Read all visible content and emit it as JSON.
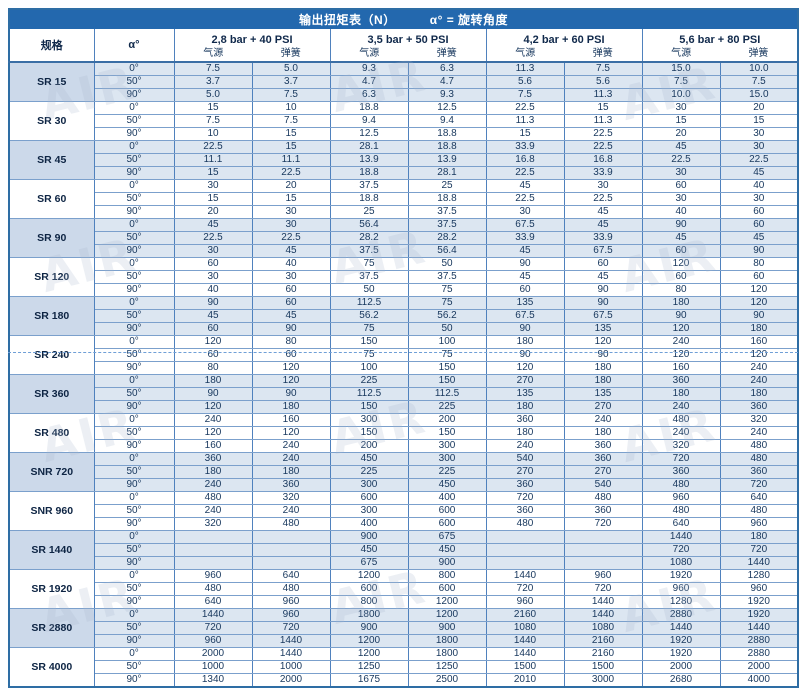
{
  "title": {
    "main": "输出扭矩表（N）",
    "formula": "α° = 旋转角度"
  },
  "table": {
    "spec_header": "规格",
    "angle_header": "α°",
    "pressure_groups": [
      {
        "label": "2,8 bar + 40 PSI",
        "air_label": "气源",
        "spring_label": "弹簧"
      },
      {
        "label": "3,5 bar + 50 PSI",
        "air_label": "气源",
        "spring_label": "弹簧"
      },
      {
        "label": "4,2 bar + 60 PSI",
        "air_label": "气源",
        "spring_label": "弹簧"
      },
      {
        "label": "5,6 bar + 80 PSI",
        "air_label": "气源",
        "spring_label": "弹簧"
      }
    ],
    "angles": [
      "0°",
      "50°",
      "90°"
    ],
    "rows": [
      {
        "spec": "SR 15",
        "values": [
          [
            "7.5",
            "5.0",
            "9.3",
            "6.3",
            "11.3",
            "7.5",
            "15.0",
            "10.0"
          ],
          [
            "3.7",
            "3.7",
            "4.7",
            "4.7",
            "5.6",
            "5.6",
            "7.5",
            "7.5"
          ],
          [
            "5.0",
            "7.5",
            "6.3",
            "9.3",
            "7.5",
            "11.3",
            "10.0",
            "15.0"
          ]
        ]
      },
      {
        "spec": "SR 30",
        "values": [
          [
            "15",
            "10",
            "18.8",
            "12.5",
            "22.5",
            "15",
            "30",
            "20"
          ],
          [
            "7.5",
            "7.5",
            "9.4",
            "9.4",
            "11.3",
            "11.3",
            "15",
            "15"
          ],
          [
            "10",
            "15",
            "12.5",
            "18.8",
            "15",
            "22.5",
            "20",
            "30"
          ]
        ]
      },
      {
        "spec": "SR 45",
        "values": [
          [
            "22.5",
            "15",
            "28.1",
            "18.8",
            "33.9",
            "22.5",
            "45",
            "30"
          ],
          [
            "11.1",
            "11.1",
            "13.9",
            "13.9",
            "16.8",
            "16.8",
            "22.5",
            "22.5"
          ],
          [
            "15",
            "22.5",
            "18.8",
            "28.1",
            "22.5",
            "33.9",
            "30",
            "45"
          ]
        ]
      },
      {
        "spec": "SR 60",
        "values": [
          [
            "30",
            "20",
            "37.5",
            "25",
            "45",
            "30",
            "60",
            "40"
          ],
          [
            "15",
            "15",
            "18.8",
            "18.8",
            "22.5",
            "22.5",
            "30",
            "30"
          ],
          [
            "20",
            "30",
            "25",
            "37.5",
            "30",
            "45",
            "40",
            "60"
          ]
        ]
      },
      {
        "spec": "SR 90",
        "values": [
          [
            "45",
            "30",
            "56.4",
            "37.5",
            "67.5",
            "45",
            "90",
            "60"
          ],
          [
            "22.5",
            "22.5",
            "28.2",
            "28.2",
            "33.9",
            "33.9",
            "45",
            "45"
          ],
          [
            "30",
            "45",
            "37.5",
            "56.4",
            "45",
            "67.5",
            "60",
            "90"
          ]
        ]
      },
      {
        "spec": "SR 120",
        "values": [
          [
            "60",
            "40",
            "75",
            "50",
            "90",
            "60",
            "120",
            "80"
          ],
          [
            "30",
            "30",
            "37.5",
            "37.5",
            "45",
            "45",
            "60",
            "60"
          ],
          [
            "40",
            "60",
            "50",
            "75",
            "60",
            "90",
            "80",
            "120"
          ]
        ]
      },
      {
        "spec": "SR 180",
        "values": [
          [
            "90",
            "60",
            "112.5",
            "75",
            "135",
            "90",
            "180",
            "120"
          ],
          [
            "45",
            "45",
            "56.2",
            "56.2",
            "67.5",
            "67.5",
            "90",
            "90"
          ],
          [
            "60",
            "90",
            "75",
            "50",
            "90",
            "135",
            "120",
            "180"
          ]
        ]
      },
      {
        "spec": "SR 240",
        "values": [
          [
            "120",
            "80",
            "150",
            "100",
            "180",
            "120",
            "240",
            "160"
          ],
          [
            "60",
            "60",
            "75",
            "75",
            "90",
            "90",
            "120",
            "120"
          ],
          [
            "80",
            "120",
            "100",
            "150",
            "120",
            "180",
            "160",
            "240"
          ]
        ]
      },
      {
        "spec": "SR 360",
        "values": [
          [
            "180",
            "120",
            "225",
            "150",
            "270",
            "180",
            "360",
            "240"
          ],
          [
            "90",
            "90",
            "112.5",
            "112.5",
            "135",
            "135",
            "180",
            "180"
          ],
          [
            "120",
            "180",
            "150",
            "225",
            "180",
            "270",
            "240",
            "360"
          ]
        ]
      },
      {
        "spec": "SR 480",
        "values": [
          [
            "240",
            "160",
            "300",
            "200",
            "360",
            "240",
            "480",
            "320"
          ],
          [
            "120",
            "120",
            "150",
            "150",
            "180",
            "180",
            "240",
            "240"
          ],
          [
            "160",
            "240",
            "200",
            "300",
            "240",
            "360",
            "320",
            "480"
          ]
        ]
      },
      {
        "spec": "SNR 720",
        "values": [
          [
            "360",
            "240",
            "450",
            "300",
            "540",
            "360",
            "720",
            "480"
          ],
          [
            "180",
            "180",
            "225",
            "225",
            "270",
            "270",
            "360",
            "360"
          ],
          [
            "240",
            "360",
            "300",
            "450",
            "360",
            "540",
            "480",
            "720"
          ]
        ]
      },
      {
        "spec": "SNR 960",
        "values": [
          [
            "480",
            "320",
            "600",
            "400",
            "720",
            "480",
            "960",
            "640"
          ],
          [
            "240",
            "240",
            "300",
            "600",
            "360",
            "360",
            "480",
            "480"
          ],
          [
            "320",
            "480",
            "400",
            "600",
            "480",
            "720",
            "640",
            "960"
          ]
        ]
      },
      {
        "spec": "SR 1440",
        "values": [
          [
            "",
            "",
            "900",
            "675",
            "",
            "",
            "1440",
            "180"
          ],
          [
            "",
            "",
            "450",
            "450",
            "",
            "",
            "720",
            "720"
          ],
          [
            "",
            "",
            "675",
            "900",
            "",
            "",
            "1080",
            "1440"
          ]
        ]
      },
      {
        "spec": "SR 1920",
        "values": [
          [
            "960",
            "640",
            "1200",
            "800",
            "1440",
            "960",
            "1920",
            "1280"
          ],
          [
            "480",
            "480",
            "600",
            "600",
            "720",
            "720",
            "960",
            "960"
          ],
          [
            "640",
            "960",
            "800",
            "1200",
            "960",
            "1440",
            "1280",
            "1920"
          ]
        ]
      },
      {
        "spec": "SR 2880",
        "values": [
          [
            "1440",
            "960",
            "1800",
            "1200",
            "2160",
            "1440",
            "2880",
            "1920"
          ],
          [
            "720",
            "720",
            "900",
            "900",
            "1080",
            "1080",
            "1440",
            "1440"
          ],
          [
            "960",
            "1440",
            "1200",
            "1800",
            "1440",
            "2160",
            "1920",
            "2880"
          ]
        ]
      },
      {
        "spec": "SR 4000",
        "values": [
          [
            "2000",
            "1440",
            "1200",
            "1800",
            "1440",
            "2160",
            "1920",
            "2880"
          ],
          [
            "1000",
            "1000",
            "1250",
            "1250",
            "1500",
            "1500",
            "2000",
            "2000"
          ],
          [
            "1340",
            "2000",
            "1675",
            "2500",
            "2010",
            "3000",
            "2680",
            "4000"
          ]
        ]
      }
    ]
  },
  "page_break": {
    "after_spec": "SR 240",
    "after_angle_index": 0
  },
  "watermark_text": "AIR",
  "colors": {
    "title_bar": "#2368ae",
    "border": "#4f81bd",
    "shaded_row": "#dce6f1",
    "shaded_spec": "#ccd9ea",
    "text": "#17375d"
  }
}
